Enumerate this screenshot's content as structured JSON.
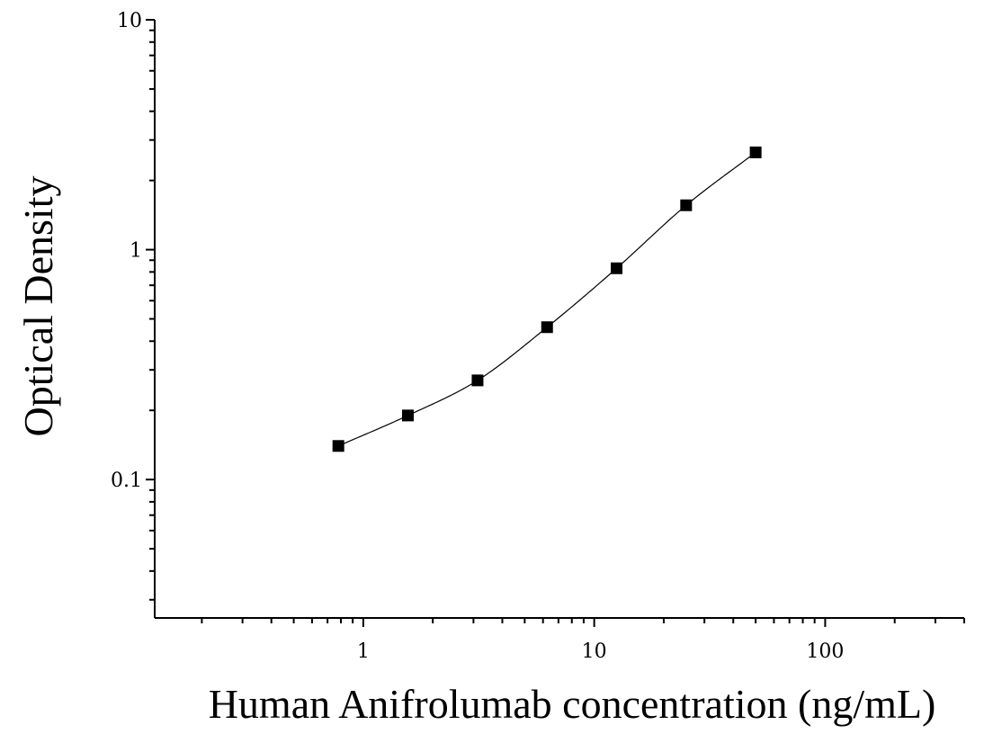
{
  "chart_data": {
    "type": "scatter",
    "title": "",
    "xlabel": "Human Anifrolumab concentration (ng/mL)",
    "ylabel": "Optical Density",
    "xscale": "log",
    "yscale": "log",
    "xlim": [
      0.125,
      400
    ],
    "ylim": [
      0.025,
      10
    ],
    "grid": false,
    "x_tick_labels": [
      "1",
      "10",
      "100"
    ],
    "y_tick_labels": [
      "0.1",
      "1",
      "10"
    ],
    "series": [
      {
        "marker": "square",
        "fit_curve": true,
        "color": "#000000",
        "x": [
          0.78,
          1.56,
          3.125,
          6.25,
          12.5,
          25,
          50
        ],
        "y": [
          0.14,
          0.19,
          0.27,
          0.46,
          0.83,
          1.56,
          2.65
        ]
      }
    ]
  }
}
